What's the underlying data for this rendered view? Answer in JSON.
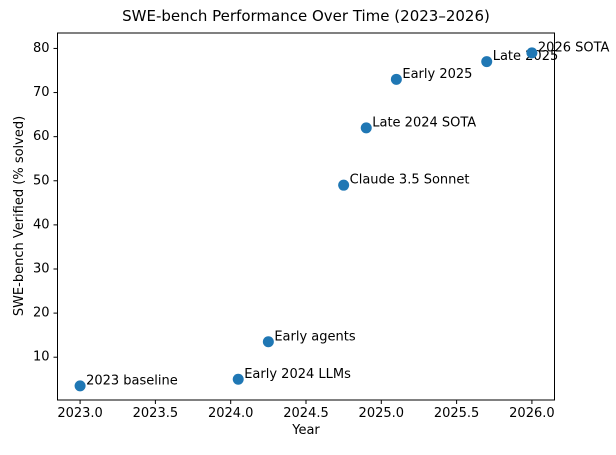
{
  "chart_data": {
    "type": "scatter",
    "title": "SWE-bench Performance Over Time (2023–2026)",
    "xlabel": "Year",
    "ylabel": "SWE-bench Verified (% solved)",
    "marker_color": "#1f77b4",
    "axis_color": "#000000",
    "background_color": "#ffffff",
    "grid": false,
    "legend": "none",
    "xlim": [
      2022.85,
      2026.15
    ],
    "ylim": [
      0.3,
      83.5
    ],
    "xticks": {
      "values": [
        2023.0,
        2023.5,
        2024.0,
        2024.5,
        2025.0,
        2025.5,
        2026.0
      ],
      "labels": [
        "2023.0",
        "2023.5",
        "2024.0",
        "2024.5",
        "2025.0",
        "2025.5",
        "2026.0"
      ]
    },
    "yticks": {
      "values": [
        10,
        20,
        30,
        40,
        50,
        60,
        70,
        80
      ],
      "labels": [
        "10",
        "20",
        "30",
        "40",
        "50",
        "60",
        "70",
        "80"
      ]
    },
    "points": [
      {
        "label": "2023 baseline",
        "x": 2023.0,
        "y": 3.5
      },
      {
        "label": "Early 2024 LLMs",
        "x": 2024.05,
        "y": 5
      },
      {
        "label": "Early agents",
        "x": 2024.25,
        "y": 13.5
      },
      {
        "label": "Claude 3.5 Sonnet",
        "x": 2024.75,
        "y": 49
      },
      {
        "label": "Late 2024 SOTA",
        "x": 2024.9,
        "y": 62
      },
      {
        "label": "Early 2025",
        "x": 2025.1,
        "y": 73
      },
      {
        "label": "Late 2025",
        "x": 2025.7,
        "y": 77
      },
      {
        "label": "2026 SOTA",
        "x": 2026.0,
        "y": 79
      }
    ]
  }
}
